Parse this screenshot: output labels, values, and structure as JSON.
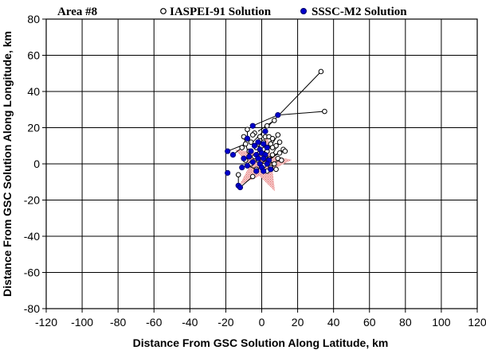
{
  "chart_data": {
    "type": "scatter",
    "title": "Area #8",
    "xlabel": "Distance From GSC Solution Along Latitude, km",
    "ylabel": "Distance From GSC Solution Along Longitude, km",
    "xlim": [
      -120,
      120
    ],
    "ylim": [
      -80,
      80
    ],
    "xticks": [
      "-120",
      "-100",
      "-80",
      "-60",
      "-40",
      "-20",
      "0",
      "20",
      "40",
      "60",
      "80",
      "100",
      "120"
    ],
    "yticks": [
      "80",
      "60",
      "40",
      "20",
      "0",
      "-20",
      "-40",
      "-60",
      "-80"
    ],
    "grid": true,
    "legend_position": "top",
    "reference_marker": {
      "shape": "star",
      "x": 0,
      "y": 0,
      "color": "#f4a0a0"
    },
    "series": [
      {
        "name": "IASPEI-91 Solution",
        "marker": "open-circle",
        "color": "#000000",
        "points": [
          [
            33,
            51
          ],
          [
            35,
            29
          ],
          [
            7,
            24
          ],
          [
            3,
            21
          ],
          [
            -4,
            17
          ],
          [
            -5,
            16
          ],
          [
            -8,
            19
          ],
          [
            -10,
            15
          ],
          [
            2,
            15
          ],
          [
            4,
            15
          ],
          [
            6,
            14
          ],
          [
            9,
            16
          ],
          [
            1,
            12
          ],
          [
            -2,
            11
          ],
          [
            -6,
            12
          ],
          [
            -9,
            11
          ],
          [
            -11,
            9
          ],
          [
            5,
            11
          ],
          [
            8,
            10
          ],
          [
            12,
            8
          ],
          [
            -3,
            9
          ],
          [
            1,
            8
          ],
          [
            3,
            7
          ],
          [
            -7,
            7
          ],
          [
            10,
            6
          ],
          [
            13,
            7
          ],
          [
            6,
            5
          ],
          [
            -1,
            6
          ],
          [
            2,
            4
          ],
          [
            -4,
            4
          ],
          [
            9,
            3
          ],
          [
            11,
            2
          ],
          [
            -2,
            2
          ],
          [
            4,
            1
          ],
          [
            7,
            0
          ],
          [
            -6,
            0
          ],
          [
            1,
            -1
          ],
          [
            5,
            -2
          ],
          [
            -3,
            -3
          ],
          [
            8,
            -3
          ],
          [
            -13,
            -6
          ],
          [
            -5,
            -7
          ],
          [
            3,
            -4
          ],
          [
            -9,
            2
          ],
          [
            0,
            10
          ],
          [
            6,
            9
          ],
          [
            -1,
            15
          ],
          [
            10,
            12
          ]
        ]
      },
      {
        "name": "SSSC-M2 Solution",
        "marker": "filled-circle",
        "color": "#0000cc",
        "points": [
          [
            9,
            27
          ],
          [
            -5,
            21
          ],
          [
            2,
            18
          ],
          [
            -8,
            14
          ],
          [
            -2,
            12
          ],
          [
            1,
            11
          ],
          [
            -4,
            10
          ],
          [
            3,
            9
          ],
          [
            -1,
            8
          ],
          [
            -6,
            7
          ],
          [
            -19,
            7
          ],
          [
            -16,
            5
          ],
          [
            0,
            6
          ],
          [
            -3,
            5
          ],
          [
            2,
            5
          ],
          [
            -7,
            4
          ],
          [
            -2,
            3
          ],
          [
            1,
            3
          ],
          [
            4,
            2
          ],
          [
            -10,
            3
          ],
          [
            -5,
            1
          ],
          [
            -1,
            0
          ],
          [
            3,
            0
          ],
          [
            -8,
            -1
          ],
          [
            -11,
            -2
          ],
          [
            0,
            -2
          ],
          [
            5,
            -3
          ],
          [
            -3,
            -4
          ],
          [
            1,
            -4
          ],
          [
            -19,
            -5
          ],
          [
            -13,
            -12
          ],
          [
            -12,
            -13
          ]
        ]
      }
    ],
    "links": [
      {
        "from": [
          33,
          51
        ],
        "to": [
          -5,
          12
        ]
      },
      {
        "from": [
          35,
          29
        ],
        "to": [
          9,
          27
        ]
      },
      {
        "from": [
          9,
          27
        ],
        "to": [
          -5,
          21
        ]
      },
      {
        "from": [
          7,
          24
        ],
        "to": [
          -2,
          18
        ]
      },
      {
        "from": [
          9,
          16
        ],
        "to": [
          2,
          5
        ]
      },
      {
        "from": [
          12,
          8
        ],
        "to": [
          4,
          2
        ]
      },
      {
        "from": [
          13,
          7
        ],
        "to": [
          1,
          3
        ]
      },
      {
        "from": [
          -8,
          19
        ],
        "to": [
          -8,
          14
        ]
      },
      {
        "from": [
          -10,
          15
        ],
        "to": [
          -7,
          4
        ]
      },
      {
        "from": [
          -11,
          9
        ],
        "to": [
          -16,
          5
        ]
      },
      {
        "from": [
          -9,
          11
        ],
        "to": [
          -19,
          7
        ]
      },
      {
        "from": [
          -13,
          -6
        ],
        "to": [
          -13,
          -12
        ]
      },
      {
        "from": [
          -5,
          -7
        ],
        "to": [
          -12,
          -13
        ]
      },
      {
        "from": [
          6,
          14
        ],
        "to": [
          3,
          9
        ]
      },
      {
        "from": [
          10,
          12
        ],
        "to": [
          4,
          2
        ]
      },
      {
        "from": [
          10,
          6
        ],
        "to": [
          -1,
          0
        ]
      },
      {
        "from": [
          -6,
          12
        ],
        "to": [
          -4,
          10
        ]
      },
      {
        "from": [
          8,
          -3
        ],
        "to": [
          5,
          -3
        ]
      },
      {
        "from": [
          -3,
          -3
        ],
        "to": [
          -8,
          -1
        ]
      },
      {
        "from": [
          11,
          2
        ],
        "to": [
          3,
          0
        ]
      }
    ]
  }
}
